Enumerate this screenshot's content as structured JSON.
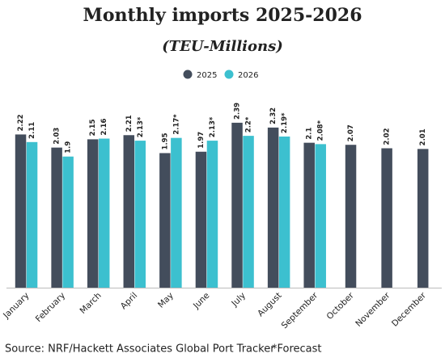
{
  "chart_data": {
    "type": "bar",
    "title": "Monthly imports 2025-2026",
    "subtitle": "(TEU-Millions)",
    "categories": [
      "January",
      "February",
      "March",
      "April",
      "May",
      "June",
      "July",
      "August",
      "September",
      "October",
      "November",
      "December"
    ],
    "series": [
      {
        "name": "2025",
        "color": "#434d5c",
        "values": [
          2.22,
          2.03,
          2.15,
          2.21,
          1.95,
          1.97,
          2.39,
          2.32,
          2.1,
          2.07,
          2.02,
          2.01
        ]
      },
      {
        "name": "2026",
        "color": "#3cc0cf",
        "values": [
          2.11,
          1.9,
          2.16,
          2.13,
          2.17,
          2.13,
          2.2,
          2.19,
          2.08,
          null,
          null,
          null
        ],
        "value_labels": [
          "2.11",
          "1.9",
          "2.16",
          "2.13*",
          "2.17*",
          "2.13*",
          "2.2*",
          "2.19*",
          "2.08*",
          null,
          null,
          null
        ]
      }
    ],
    "source": "Source: NRF/Hackett Associates Global Port Tracker",
    "note": "*Forecast"
  }
}
